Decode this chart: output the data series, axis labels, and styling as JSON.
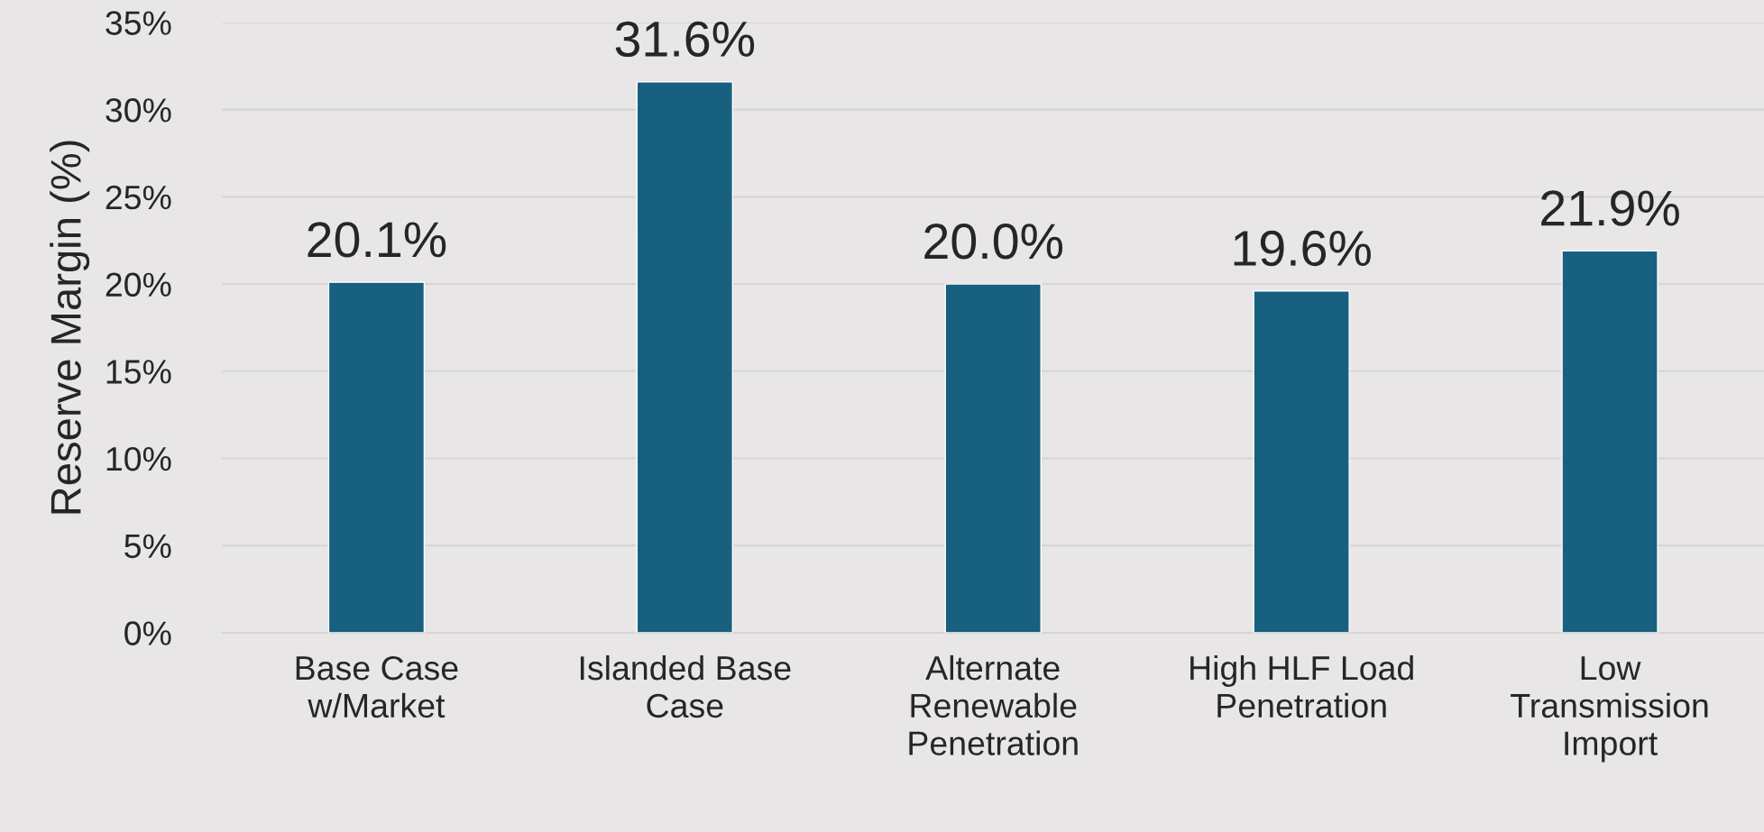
{
  "chart_data": {
    "type": "bar",
    "ylabel": "Reserve Margin (%)",
    "categories": [
      "Base Case\nw/Market",
      "Islanded Base\nCase",
      "Alternate\nRenewable\nPenetration",
      "High HLF Load\nPenetration",
      "Low\nTransmission\nImport"
    ],
    "values": [
      20.1,
      31.6,
      20.0,
      19.6,
      21.9
    ],
    "value_labels": [
      "20.1%",
      "31.6%",
      "20.0%",
      "19.6%",
      "21.9%"
    ],
    "color": "#17607f",
    "ylim": [
      0,
      35
    ],
    "yticks": [
      {
        "value": 0,
        "label": "0%"
      },
      {
        "value": 5,
        "label": "5%"
      },
      {
        "value": 10,
        "label": "10%"
      },
      {
        "value": 15,
        "label": "15%"
      },
      {
        "value": 20,
        "label": "20%"
      },
      {
        "value": 25,
        "label": "25%"
      },
      {
        "value": 30,
        "label": "30%"
      },
      {
        "value": 35,
        "label": "35%"
      }
    ],
    "grid": "y"
  }
}
